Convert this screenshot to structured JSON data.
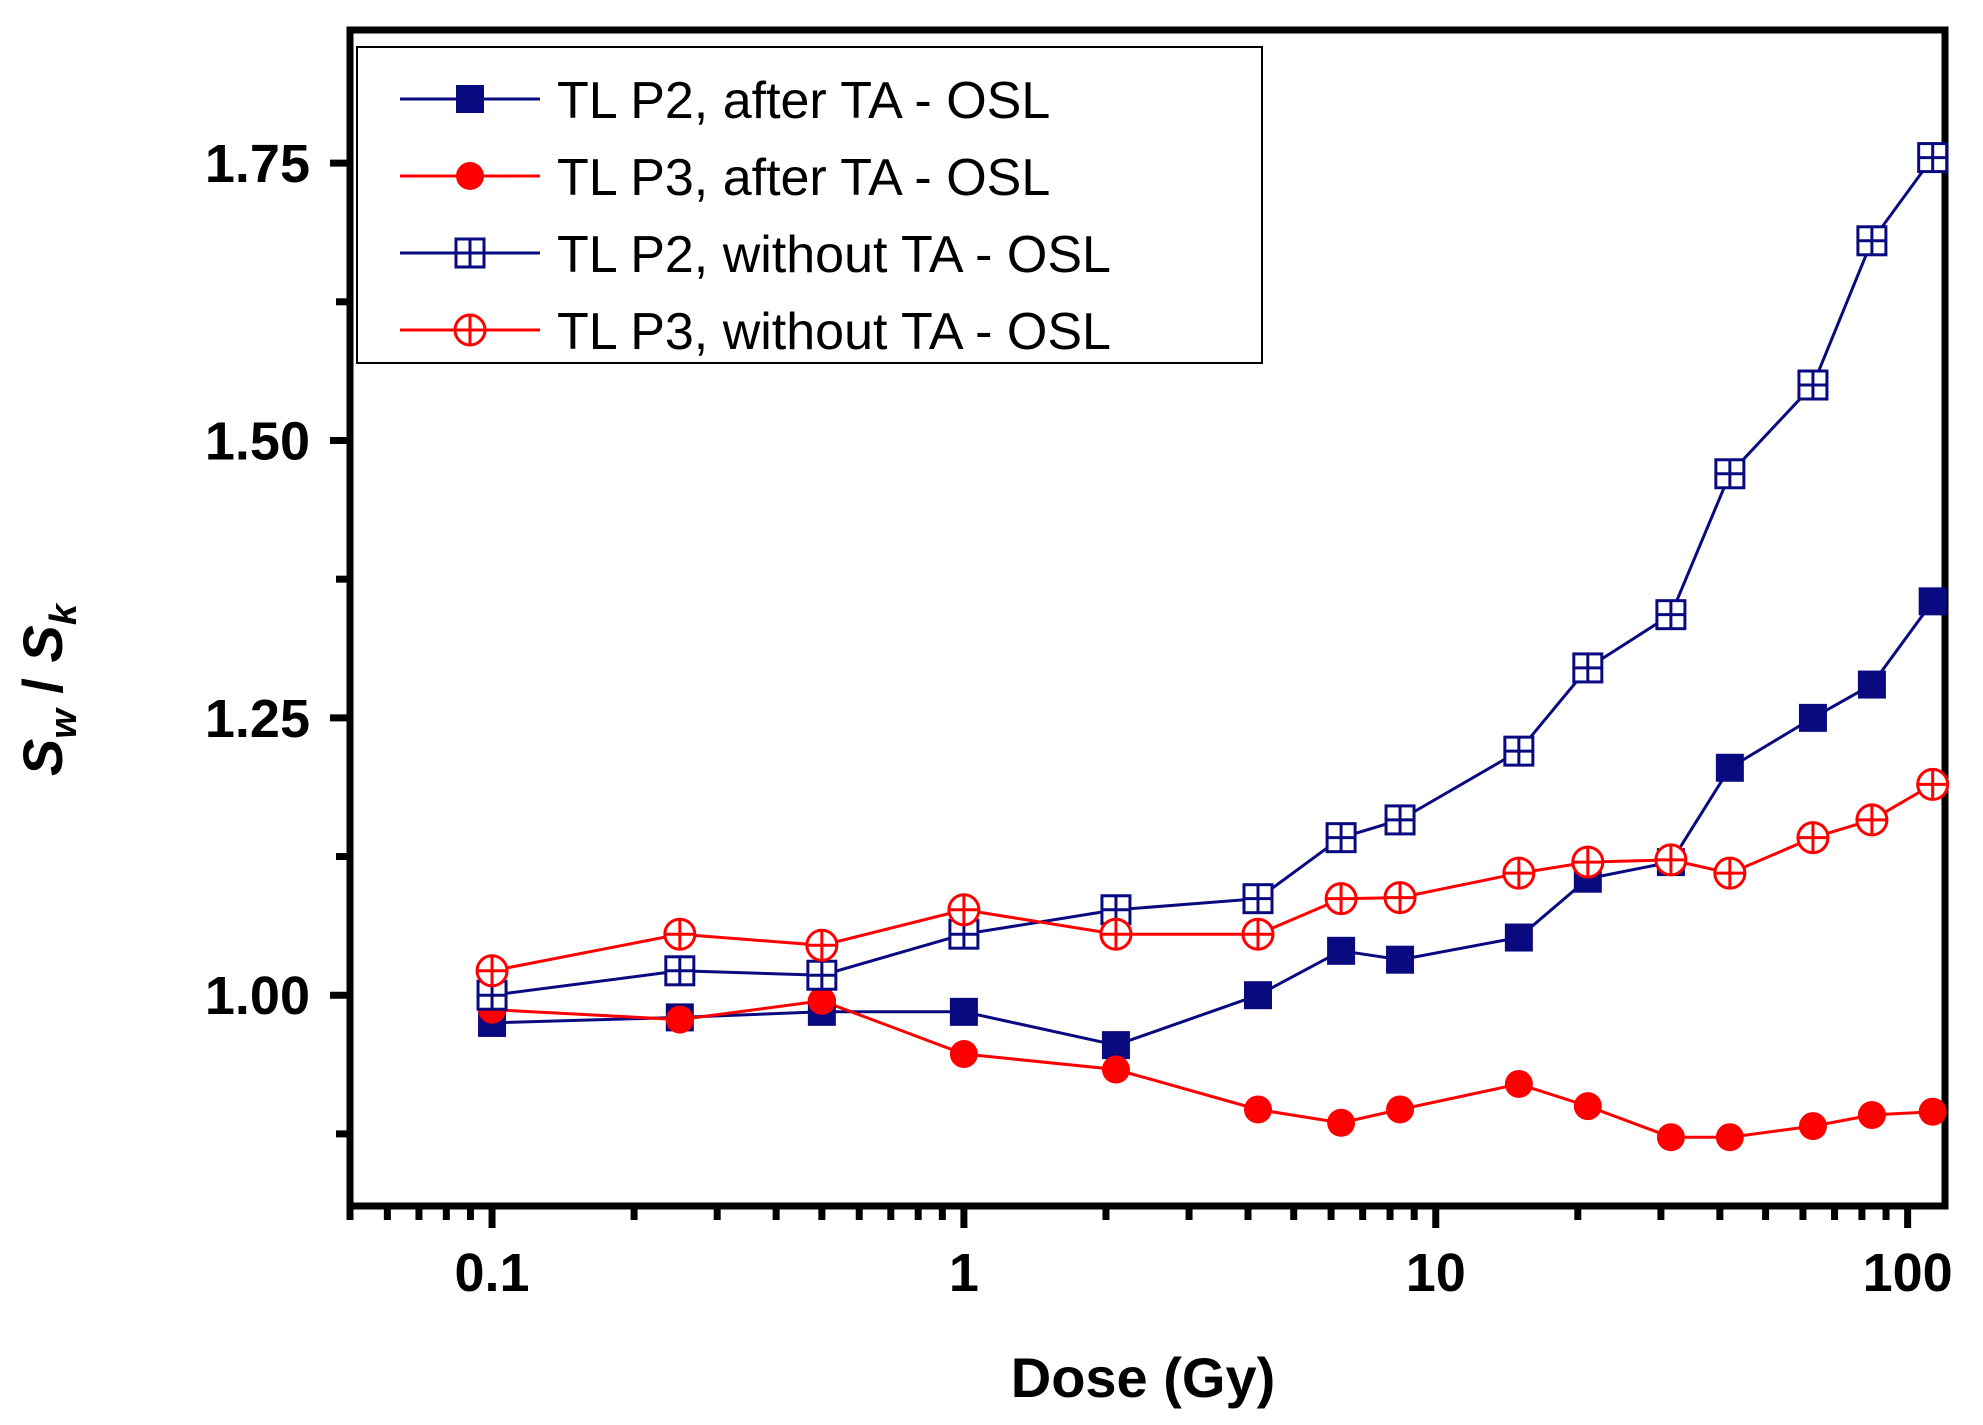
{
  "chart_data": {
    "type": "line",
    "title": "",
    "xlabel": "Dose (Gy)",
    "ylabel_parts": {
      "s1": "S",
      "sub1": "w",
      "slash": " / ",
      "s2": "S",
      "sub2": "k"
    },
    "xscale": "log",
    "xlim": [
      0.05,
      120
    ],
    "ylim": [
      0.81,
      1.87
    ],
    "x_ticks": [
      {
        "value": 0.1,
        "label": "0.1"
      },
      {
        "value": 1,
        "label": "1"
      },
      {
        "value": 10,
        "label": "10"
      },
      {
        "value": 100,
        "label": "100"
      }
    ],
    "y_ticks": [
      {
        "value": 1.0,
        "label": "1.00"
      },
      {
        "value": 1.25,
        "label": "1.25"
      },
      {
        "value": 1.5,
        "label": "1.50"
      },
      {
        "value": 1.75,
        "label": "1.75"
      }
    ],
    "y_minor_ticks": [
      0.875,
      1.125,
      1.375,
      1.625
    ],
    "x": [
      0.1,
      0.25,
      0.5,
      1,
      2.1,
      4.2,
      6.3,
      8.4,
      15,
      21,
      31.5,
      42,
      63,
      84,
      113
    ],
    "legend_position": "top-left",
    "series": [
      {
        "name": "TL P2, after TA - OSL",
        "color": "#0a0a80",
        "marker": "filled-square",
        "values": [
          0.975,
          0.98,
          0.985,
          0.985,
          0.955,
          1.0,
          1.04,
          1.032,
          1.052,
          1.105,
          1.12,
          1.205,
          1.25,
          1.28,
          1.355
        ]
      },
      {
        "name": "TL P3, after TA - OSL",
        "color": "#ff0000",
        "marker": "filled-circle",
        "values": [
          0.987,
          0.978,
          0.995,
          0.947,
          0.933,
          0.897,
          0.885,
          0.897,
          0.92,
          0.9,
          0.872,
          0.872,
          0.882,
          0.892,
          0.895
        ]
      },
      {
        "name": "TL P2, without TA - OSL",
        "color": "#0a0a80",
        "marker": "open-square-cross",
        "values": [
          1.0,
          1.022,
          1.018,
          1.055,
          1.077,
          1.087,
          1.142,
          1.158,
          1.22,
          1.295,
          1.343,
          1.47,
          1.55,
          1.68,
          1.755
        ]
      },
      {
        "name": "TL P3, without TA - OSL",
        "color": "#ff0000",
        "marker": "open-circle-cross",
        "values": [
          1.022,
          1.055,
          1.045,
          1.077,
          1.055,
          1.055,
          1.087,
          1.088,
          1.11,
          1.12,
          1.122,
          1.11,
          1.142,
          1.158,
          1.19
        ]
      }
    ]
  }
}
